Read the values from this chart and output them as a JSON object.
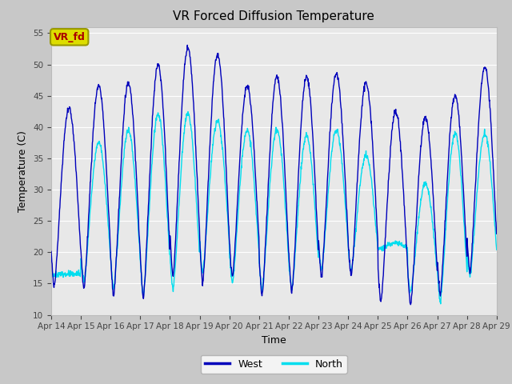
{
  "title": "VR Forced Diffusion Temperature",
  "xlabel": "Time",
  "ylabel": "Temperature (C)",
  "ylim": [
    10,
    56
  ],
  "yticks": [
    10,
    15,
    20,
    25,
    30,
    35,
    40,
    45,
    50,
    55
  ],
  "fig_bg_color": "#c8c8c8",
  "plot_bg_color": "#e8e8e8",
  "west_color": "#0000bb",
  "north_color": "#00ddee",
  "legend_label_west": "West",
  "legend_label_north": "North",
  "annotation_text": "VR_fd",
  "annotation_box_color": "#dddd00",
  "annotation_text_color": "#aa0000",
  "xtick_labels": [
    "Apr 14",
    "Apr 15",
    "Apr 16",
    "Apr 17",
    "Apr 18",
    "Apr 19",
    "Apr 20",
    "Apr 21",
    "Apr 22",
    "Apr 23",
    "Apr 24",
    "Apr 25",
    "Apr 26",
    "Apr 27",
    "Apr 28",
    "Apr 29"
  ],
  "num_days": 15,
  "west_peaks": [
    43.0,
    46.5,
    47.0,
    50.0,
    52.5,
    51.5,
    46.5,
    48.0,
    48.0,
    48.5,
    47.0,
    42.5,
    41.5,
    45.0,
    49.5
  ],
  "west_troughs": [
    14.5,
    14.0,
    13.0,
    12.5,
    16.0,
    15.0,
    16.0,
    13.0,
    13.5,
    16.0,
    16.0,
    12.0,
    11.5,
    13.0,
    16.5
  ],
  "north_peaks": [
    16.5,
    37.5,
    39.5,
    42.0,
    42.0,
    41.0,
    39.5,
    39.5,
    38.5,
    39.5,
    35.5,
    21.5,
    31.0,
    39.0,
    39.0
  ],
  "north_troughs": [
    16.5,
    15.0,
    14.0,
    13.0,
    14.0,
    17.0,
    15.0,
    14.0,
    14.0,
    17.0,
    17.0,
    20.5,
    13.5,
    12.0,
    16.0
  ]
}
